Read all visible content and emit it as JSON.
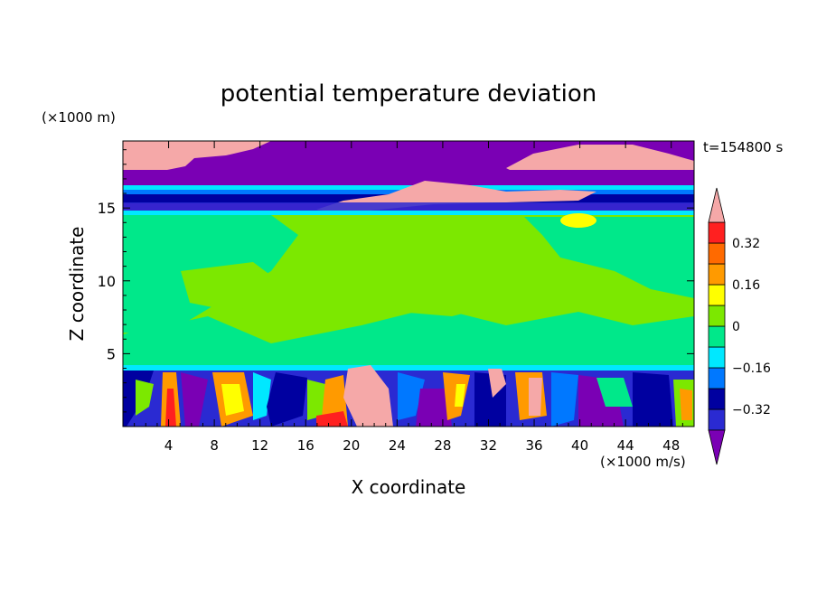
{
  "chart_data": {
    "type": "heatmap",
    "title": "potential temperature deviation",
    "xlabel": "X coordinate",
    "ylabel": "Z coordinate",
    "x_unit": "(×1000 m/s)",
    "y_unit": "(×1000 m)",
    "time_label": "t=154800 s",
    "xlim": [
      0,
      50
    ],
    "ylim": [
      0,
      19.6
    ],
    "x_ticks": [
      4,
      8,
      12,
      16,
      20,
      24,
      28,
      32,
      36,
      40,
      44,
      48
    ],
    "y_ticks": [
      5,
      10,
      15
    ],
    "colorbar": {
      "levels": [
        -0.4,
        -0.32,
        -0.24,
        -0.16,
        -0.08,
        0,
        0.08,
        0.16,
        0.24,
        0.32,
        0.4
      ],
      "tick_labels": [
        "0.32",
        "0.16",
        "0",
        "−0.16",
        "−0.32"
      ],
      "tick_values": [
        0.32,
        0.16,
        0,
        -0.16,
        -0.32
      ],
      "colors": [
        "#7a00b4",
        "#2a2ad2",
        "#0000a0",
        "#0078ff",
        "#00e8ff",
        "#00e88a",
        "#7ce800",
        "#ffff00",
        "#ff9a00",
        "#ff6a00",
        "#ff2020",
        "#f5a8a8"
      ],
      "extend": "both"
    },
    "bands": [
      {
        "z_range": [
          15.0,
          19.6
        ],
        "description": "upper layer: purple and pink regions with blue/cyan stripes near 15-16.5"
      },
      {
        "z_range": [
          4.0,
          15.0
        ],
        "description": "mid layer: mostly green (0 to 0.16), teal patches"
      },
      {
        "z_range": [
          0.0,
          4.0
        ],
        "description": "lower layer: strong mixed anomalies"
      }
    ]
  }
}
